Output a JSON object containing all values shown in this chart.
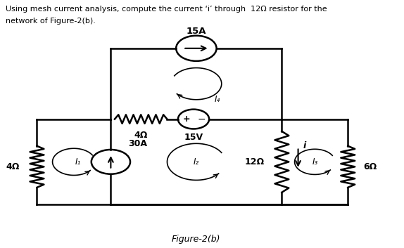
{
  "title_line1": "Using mesh current analysis, compute the current ‘i’ through  12Ω resistor for the",
  "title_line2": "network of Figure-2(b).",
  "figure_label": "Figure-2(b)",
  "xA": 0.09,
  "xB": 0.28,
  "xD": 0.72,
  "xE": 0.89,
  "yT": 0.81,
  "yM": 0.52,
  "yB": 0.17,
  "cs15_r": 0.052,
  "cs30_r": 0.05,
  "vs15_r": 0.04,
  "res_lw": 1.8,
  "wire_lw": 1.8
}
